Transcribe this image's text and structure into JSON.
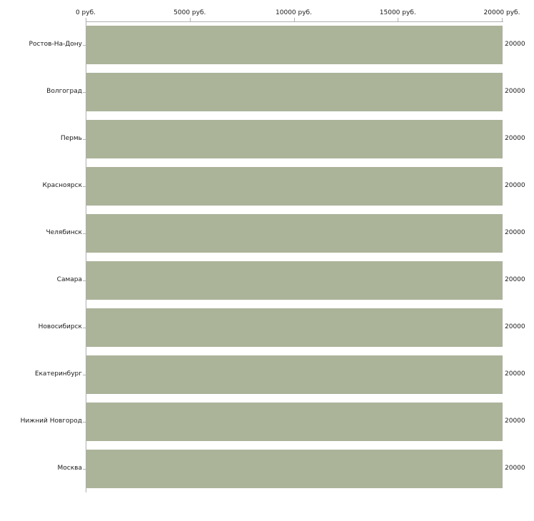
{
  "chart_data": {
    "type": "bar",
    "orientation": "horizontal",
    "title": "",
    "xlabel": "руб.",
    "ylabel": "",
    "categories": [
      "Ростов-На-Дону",
      "Волгоград",
      "Пермь",
      "Красноярск",
      "Челябинск",
      "Самара",
      "Новосибирск",
      "Екатеринбург",
      "Нижний Новгород",
      "Москва"
    ],
    "values": [
      20000,
      20000,
      20000,
      20000,
      20000,
      20000,
      20000,
      20000,
      20000,
      20000
    ],
    "value_labels": [
      "20000",
      "20000",
      "20000",
      "20000",
      "20000",
      "20000",
      "20000",
      "20000",
      "20000",
      "20000"
    ],
    "xlim": [
      0,
      20000
    ],
    "x_ticks": [
      0,
      5000,
      10000,
      15000,
      20000
    ],
    "x_tick_labels": [
      "0 руб.",
      "5000 руб.",
      "10000 руб.",
      "15000 руб.",
      "20000 руб."
    ],
    "grid": false,
    "legend": "none",
    "bar_color": "#abb399",
    "axis_color": "#b0b0b0",
    "background_color": "#ffffff"
  },
  "layout_note": "all bars reach full axis maximum of 20000 руб., value labels clipped at right edge"
}
